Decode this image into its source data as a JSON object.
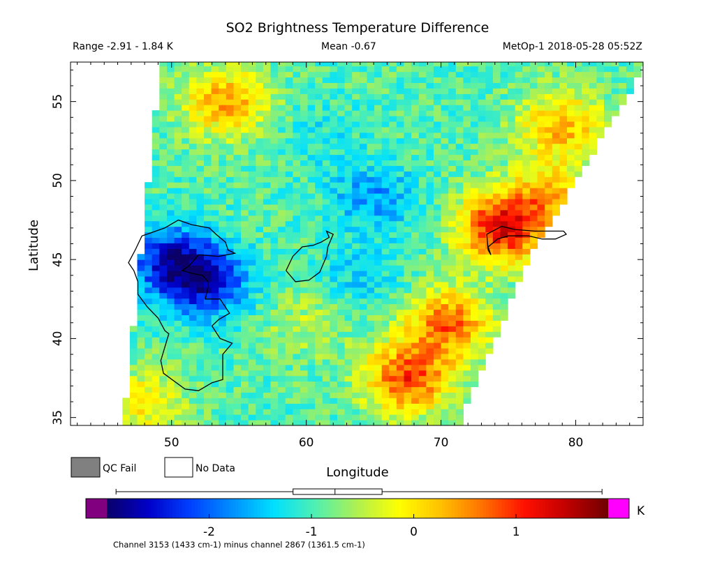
{
  "chart_data": {
    "type": "heatmap",
    "title": "SO2 Brightness Temperature Difference",
    "header": {
      "range": "Range -2.91 - 1.84 K",
      "mean": "Mean -0.67",
      "satellite_time": "MetOp-1 2018-05-28 05:52Z"
    },
    "xlabel": "Longitude",
    "ylabel": "Latitude",
    "xlim": [
      42.5,
      85
    ],
    "ylim": [
      34.5,
      57.5
    ],
    "x_ticks": [
      50,
      60,
      70,
      80
    ],
    "y_ticks": [
      35,
      40,
      45,
      50,
      55
    ],
    "x_tick_labels": [
      "50",
      "60",
      "70",
      "80"
    ],
    "y_tick_labels": [
      "35",
      "40",
      "45",
      "50",
      "55"
    ],
    "swath": {
      "left_edge": [
        [
          46.4,
          34.5
        ],
        [
          49.2,
          57.5
        ]
      ],
      "right_edge": [
        [
          71.3,
          34.5
        ],
        [
          76.5,
          45
        ],
        [
          82.5,
          53.5
        ],
        [
          85,
          57
        ]
      ]
    },
    "value_range": [
      -2.91,
      1.84
    ],
    "mean": -0.67,
    "features": [
      {
        "lon": 65,
        "lat": 49,
        "value": -1.7
      },
      {
        "lon": 64,
        "lat": 44,
        "value": -1.4
      },
      {
        "lon": 50,
        "lat": 45,
        "value": -2.4
      },
      {
        "lon": 52.5,
        "lat": 43.5,
        "value": -2.4
      },
      {
        "lon": 61,
        "lat": 53,
        "value": -1.2
      },
      {
        "lon": 74.5,
        "lat": 47,
        "value": 1.3
      },
      {
        "lon": 67.5,
        "lat": 37.5,
        "value": 0.9
      },
      {
        "lon": 70.5,
        "lat": 41,
        "value": 0.7
      },
      {
        "lon": 54,
        "lat": 55,
        "value": 0.4
      },
      {
        "lon": 79,
        "lat": 53.5,
        "value": 0.3
      },
      {
        "lon": 78,
        "lat": 49,
        "value": 0.1
      },
      {
        "lon": 60,
        "lat": 41,
        "value": -0.5
      },
      {
        "lon": 48,
        "lat": 36,
        "value": -0.1
      }
    ],
    "base_value": -0.95,
    "colorbar": {
      "label": "K",
      "min": -3.0,
      "max": 1.9,
      "ticks": [
        -2,
        -1,
        0,
        1
      ],
      "tick_labels": [
        "-2",
        "-1",
        "0",
        "1"
      ],
      "stops": [
        "#0a0068",
        "#0000c8",
        "#0040ff",
        "#0090ff",
        "#00e0ff",
        "#50f0b0",
        "#b0f050",
        "#ffff00",
        "#ffc000",
        "#ff7000",
        "#ff1000",
        "#c00000",
        "#700000"
      ],
      "under_color": "#800080",
      "over_color": "#ff00ff",
      "boxplot": {
        "min": -2.91,
        "q1": -1.18,
        "median": -0.77,
        "q3": -0.31,
        "max": 1.84
      }
    },
    "legend": [
      {
        "label": "QC Fail",
        "color": "#808080"
      },
      {
        "label": "No Data",
        "color": "#ffffff"
      }
    ],
    "footnote": "Channel 3153 (1433 cm-1) minus channel 2867 (1361.5 cm-1)",
    "coastlines": [
      {
        "name": "caspian",
        "points": [
          [
            47.8,
            46.5
          ],
          [
            48.5,
            46.7
          ],
          [
            49.5,
            47
          ],
          [
            50.5,
            47.5
          ],
          [
            51.5,
            47.2
          ],
          [
            52.8,
            47
          ],
          [
            53.3,
            46.6
          ],
          [
            54,
            46.1
          ],
          [
            54.2,
            45.6
          ],
          [
            54.7,
            45.4
          ],
          [
            53.5,
            45.2
          ],
          [
            52,
            45.3
          ],
          [
            51.3,
            44.6
          ],
          [
            50.8,
            44.3
          ],
          [
            51.6,
            44.1
          ],
          [
            52.3,
            44
          ],
          [
            52.7,
            43.6
          ],
          [
            52.7,
            43.2
          ],
          [
            52.5,
            42.5
          ],
          [
            53.6,
            42.5
          ],
          [
            54.3,
            41.6
          ],
          [
            53.5,
            41.2
          ],
          [
            53,
            40.8
          ],
          [
            53.6,
            40
          ],
          [
            54.5,
            39.7
          ],
          [
            53.8,
            39
          ],
          [
            53.8,
            38
          ],
          [
            53.8,
            37.4
          ],
          [
            53,
            37.2
          ],
          [
            52,
            36.7
          ],
          [
            51,
            36.8
          ],
          [
            50.2,
            37.3
          ],
          [
            49.4,
            37.8
          ],
          [
            49.2,
            38.6
          ],
          [
            49.8,
            40.3
          ],
          [
            49.5,
            40.5
          ],
          [
            49,
            41.3
          ],
          [
            48.2,
            42
          ],
          [
            47.5,
            42.8
          ],
          [
            47.5,
            43.6
          ],
          [
            47.2,
            44.3
          ],
          [
            46.8,
            44.8
          ],
          [
            47.3,
            45.6
          ],
          [
            47.8,
            46.5
          ]
        ]
      },
      {
        "name": "aral",
        "points": [
          [
            58.5,
            44.3
          ],
          [
            59,
            45.2
          ],
          [
            59.7,
            45.8
          ],
          [
            60.5,
            45.9
          ],
          [
            61.1,
            46.1
          ],
          [
            61.7,
            46.4
          ],
          [
            61.5,
            46.8
          ],
          [
            62.0,
            46.6
          ],
          [
            61.6,
            45.8
          ],
          [
            61.5,
            45.2
          ],
          [
            61.0,
            44.2
          ],
          [
            60.2,
            43.7
          ],
          [
            59.2,
            43.6
          ],
          [
            58.5,
            44.3
          ]
        ]
      },
      {
        "name": "balkhash",
        "points": [
          [
            73.7,
            45.3
          ],
          [
            73.5,
            45.8
          ],
          [
            74.2,
            46.3
          ],
          [
            75.0,
            46.5
          ],
          [
            76.5,
            46.5
          ],
          [
            77.5,
            46.3
          ],
          [
            78.5,
            46.3
          ],
          [
            79.3,
            46.6
          ],
          [
            79.1,
            46.8
          ],
          [
            78.3,
            46.8
          ],
          [
            77.0,
            46.8
          ],
          [
            75.5,
            46.9
          ],
          [
            74.5,
            47.1
          ],
          [
            73.4,
            46.6
          ],
          [
            73.5,
            45.6
          ],
          [
            73.7,
            45.3
          ]
        ]
      }
    ]
  }
}
